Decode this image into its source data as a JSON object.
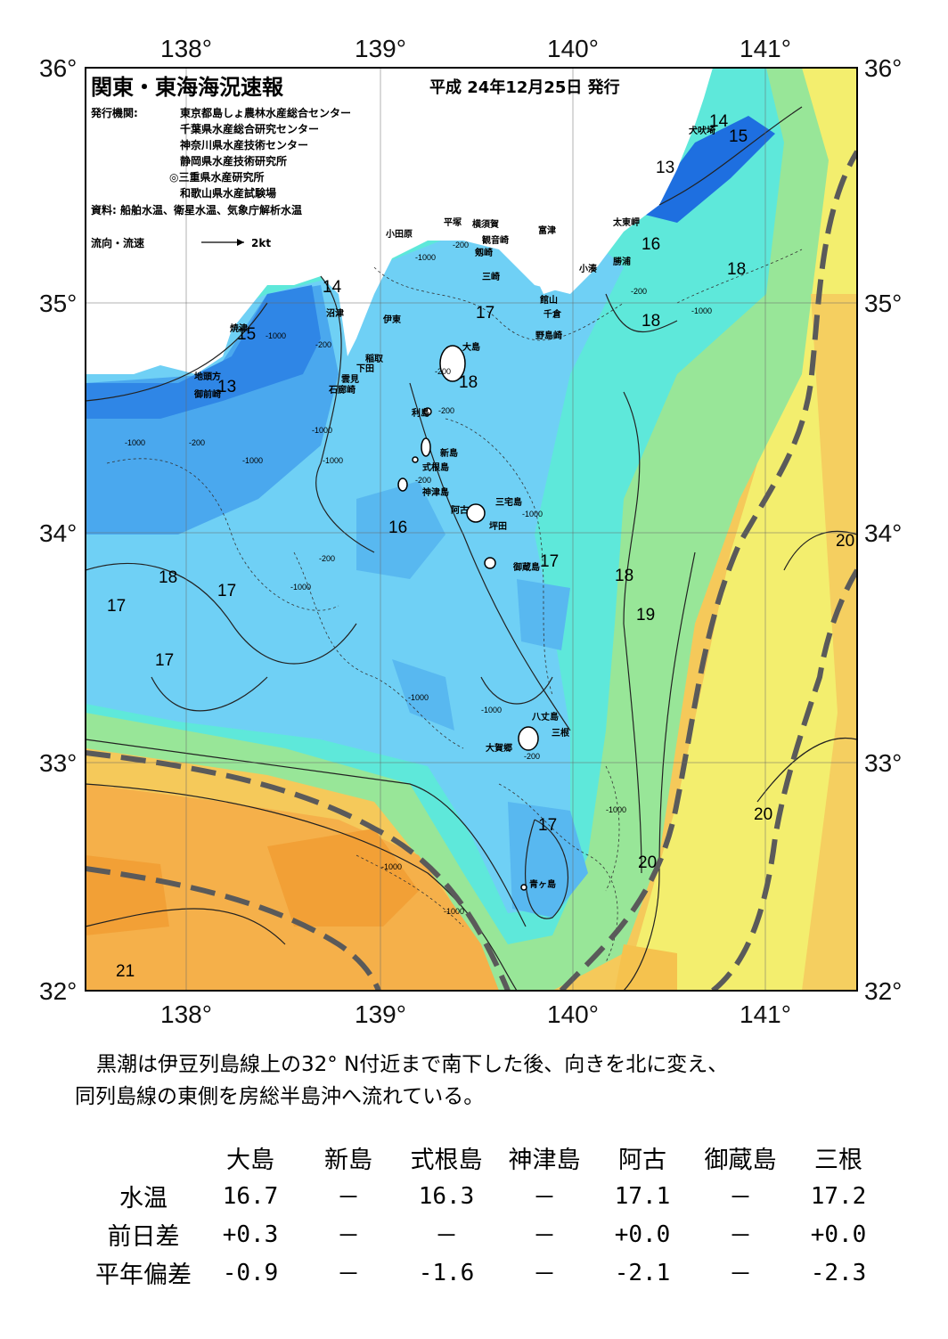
{
  "title": "関東・東海海況速報",
  "issued": "平成 24年12月25日 発行",
  "issuer_label": "発行機関:",
  "issuers": [
    "東京都島しょ農林水産総合センター",
    "千葉県水産総合研究センター",
    "神奈川県水産技術センター",
    "静岡県水産技術研究所",
    "◎三重県水産研究所",
    "和歌山県水産試験場"
  ],
  "source": "資料: 船舶水温、衛星水温、気象庁解析水温",
  "legend_flow": "流向・流速",
  "legend_speed": "2kt",
  "lon_labels": [
    "138°",
    "139°",
    "140°",
    "141°"
  ],
  "lat_labels": [
    "36°",
    "35°",
    "34°",
    "33°",
    "32°"
  ],
  "places": [
    {
      "name": "犬吠埼"
    },
    {
      "name": "太東岬"
    },
    {
      "name": "勝浦"
    },
    {
      "name": "小湊"
    },
    {
      "name": "富津"
    },
    {
      "name": "横須賀"
    },
    {
      "name": "平塚"
    },
    {
      "name": "観音崎"
    },
    {
      "name": "剱崎"
    },
    {
      "name": "三崎"
    },
    {
      "name": "小田原"
    },
    {
      "name": "館山"
    },
    {
      "name": "千倉"
    },
    {
      "name": "野島崎"
    },
    {
      "name": "沼津"
    },
    {
      "name": "伊東"
    },
    {
      "name": "焼津"
    },
    {
      "name": "稲取"
    },
    {
      "name": "下田"
    },
    {
      "name": "雲見"
    },
    {
      "name": "石廊崎"
    },
    {
      "name": "地頭方"
    },
    {
      "name": "御前崎"
    },
    {
      "name": "大島"
    },
    {
      "name": "利島"
    },
    {
      "name": "新島"
    },
    {
      "name": "式根島"
    },
    {
      "name": "神津島"
    },
    {
      "name": "三宅島"
    },
    {
      "name": "阿古"
    },
    {
      "name": "坪田"
    },
    {
      "name": "御蔵島"
    },
    {
      "name": "八丈島"
    },
    {
      "name": "三根"
    },
    {
      "name": "大賀郷"
    },
    {
      "name": "青ヶ島"
    }
  ],
  "temps": [
    {
      "t": "14"
    },
    {
      "t": "15"
    },
    {
      "t": "13"
    },
    {
      "t": "16"
    },
    {
      "t": "18"
    },
    {
      "t": "14"
    },
    {
      "t": "17"
    },
    {
      "t": "18"
    },
    {
      "t": "15"
    },
    {
      "t": "13"
    },
    {
      "t": "18"
    },
    {
      "t": "16"
    },
    {
      "t": "17"
    },
    {
      "t": "18"
    },
    {
      "t": "17"
    },
    {
      "t": "17"
    },
    {
      "t": "18"
    },
    {
      "t": "17"
    },
    {
      "t": "19"
    },
    {
      "t": "20"
    },
    {
      "t": "17"
    },
    {
      "t": "20"
    },
    {
      "t": "20"
    },
    {
      "t": "21"
    }
  ],
  "depths": [
    "-200",
    "-1000",
    "-200",
    "-1000",
    "-200",
    "-1000",
    "-1000",
    "-200",
    "-1000",
    "-200",
    "-1000",
    "-200",
    "-1000",
    "-1000",
    "-200",
    "-1000",
    "-200",
    "-1000",
    "-200",
    "-1000",
    "-1000",
    "-1000",
    "-1000"
  ],
  "summary": [
    "黒潮は伊豆列島線上の32° N付近まで南下した後、向きを北に変え、",
    "同列島線の東側を房総半島沖へ流れている。"
  ],
  "table": {
    "headers": [
      "大島",
      "新島",
      "式根島",
      "神津島",
      "阿古",
      "御蔵島",
      "三根"
    ],
    "rows": [
      {
        "label": "水温",
        "values": [
          "16.7",
          "－",
          "16.3",
          "－",
          "17.1",
          "－",
          "17.2"
        ]
      },
      {
        "label": "前日差",
        "values": [
          "+0.3",
          "－",
          "－",
          "－",
          "+0.0",
          "－",
          "+0.0"
        ]
      },
      {
        "label": "平年偏差",
        "values": [
          "-0.9",
          "－",
          "-1.6",
          "－",
          "-2.1",
          "－",
          "-2.3"
        ]
      }
    ]
  },
  "colors": {
    "cold": "#1f6fe0",
    "mid": "#50c0f0",
    "cyan": "#5ae8e0",
    "green": "#90e890",
    "yellow": "#f0f070",
    "orange": "#f5b040",
    "land": "#ffffff",
    "current": "#555555"
  }
}
